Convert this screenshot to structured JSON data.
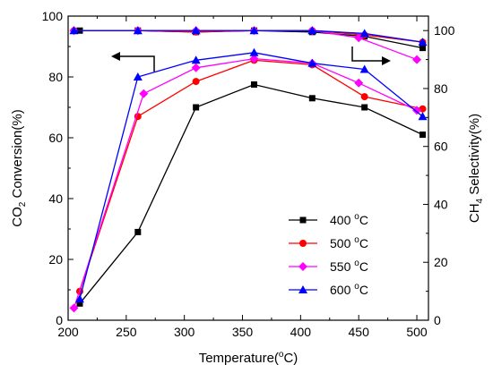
{
  "chart_data": {
    "type": "line",
    "xlabel": {
      "pre": "Temperature(",
      "sup": "o",
      "post": "C)"
    },
    "ylabel_left": {
      "pre": "CO",
      "sub": "2",
      "post": " Conversion(%)"
    },
    "ylabel_right": {
      "pre": "CH",
      "sub": "4",
      "post": " Selectivity(%)"
    },
    "xlim": [
      200,
      510
    ],
    "ylim_left": [
      0,
      100
    ],
    "ylim_right": [
      0,
      105
    ],
    "xticks": [
      200,
      250,
      300,
      350,
      400,
      450,
      500
    ],
    "yticks_left": [
      0,
      20,
      40,
      60,
      80,
      100
    ],
    "yticks_right": [
      0,
      20,
      40,
      60,
      80,
      100
    ],
    "grid": false,
    "legend_position": "center-right",
    "series": [
      {
        "name": "400 °C",
        "legend_value": "400",
        "legend_unit_sup": "o",
        "legend_unit": "C",
        "color": "#000000",
        "marker": "square",
        "conversion": {
          "x": [
            210,
            260,
            310,
            360,
            410,
            455,
            505
          ],
          "y": [
            5.5,
            29,
            70,
            77.5,
            73,
            70,
            61
          ]
        },
        "selectivity": {
          "x": [
            210,
            260,
            310,
            360,
            410,
            455,
            505
          ],
          "y": [
            100,
            100,
            99.5,
            100,
            99.5,
            98,
            94
          ]
        }
      },
      {
        "name": "500 °C",
        "legend_value": "500",
        "legend_unit_sup": "o",
        "legend_unit": "C",
        "color": "#ff0000",
        "marker": "circle",
        "conversion": {
          "x": [
            210,
            260,
            310,
            360,
            410,
            455,
            505
          ],
          "y": [
            9.5,
            67,
            78.5,
            85.5,
            84,
            73.5,
            69.5
          ]
        },
        "selectivity": {
          "x": [
            205,
            260,
            310,
            360,
            410,
            455,
            505
          ],
          "y": [
            100,
            100,
            99.5,
            100,
            100,
            98.5,
            96
          ]
        }
      },
      {
        "name": "550 °C",
        "legend_value": "550",
        "legend_unit_sup": "o",
        "legend_unit": "C",
        "color": "#ff00ff",
        "marker": "diamond",
        "conversion": {
          "x": [
            205,
            265,
            310,
            360,
            410,
            450,
            500
          ],
          "y": [
            4,
            74.5,
            83,
            86,
            84.5,
            78,
            69
          ]
        },
        "selectivity": {
          "x": [
            205,
            260,
            310,
            360,
            410,
            450,
            500
          ],
          "y": [
            100,
            100,
            100,
            100,
            100,
            97.5,
            90
          ]
        }
      },
      {
        "name": "600 °C",
        "legend_value": "600",
        "legend_unit_sup": "o",
        "legend_unit": "C",
        "color": "#0000ff",
        "marker": "triangle",
        "conversion": {
          "x": [
            210,
            260,
            310,
            360,
            410,
            455,
            505
          ],
          "y": [
            7,
            80,
            85.5,
            88,
            84.5,
            82.5,
            67
          ]
        },
        "selectivity": {
          "x": [
            205,
            260,
            310,
            360,
            410,
            455,
            505
          ],
          "y": [
            100,
            100,
            100,
            100,
            100,
            99,
            96
          ]
        }
      }
    ],
    "annotations": [
      {
        "type": "arrow",
        "direction": "left",
        "target_axis": "left"
      },
      {
        "type": "arrow",
        "direction": "right",
        "target_axis": "right"
      }
    ]
  }
}
